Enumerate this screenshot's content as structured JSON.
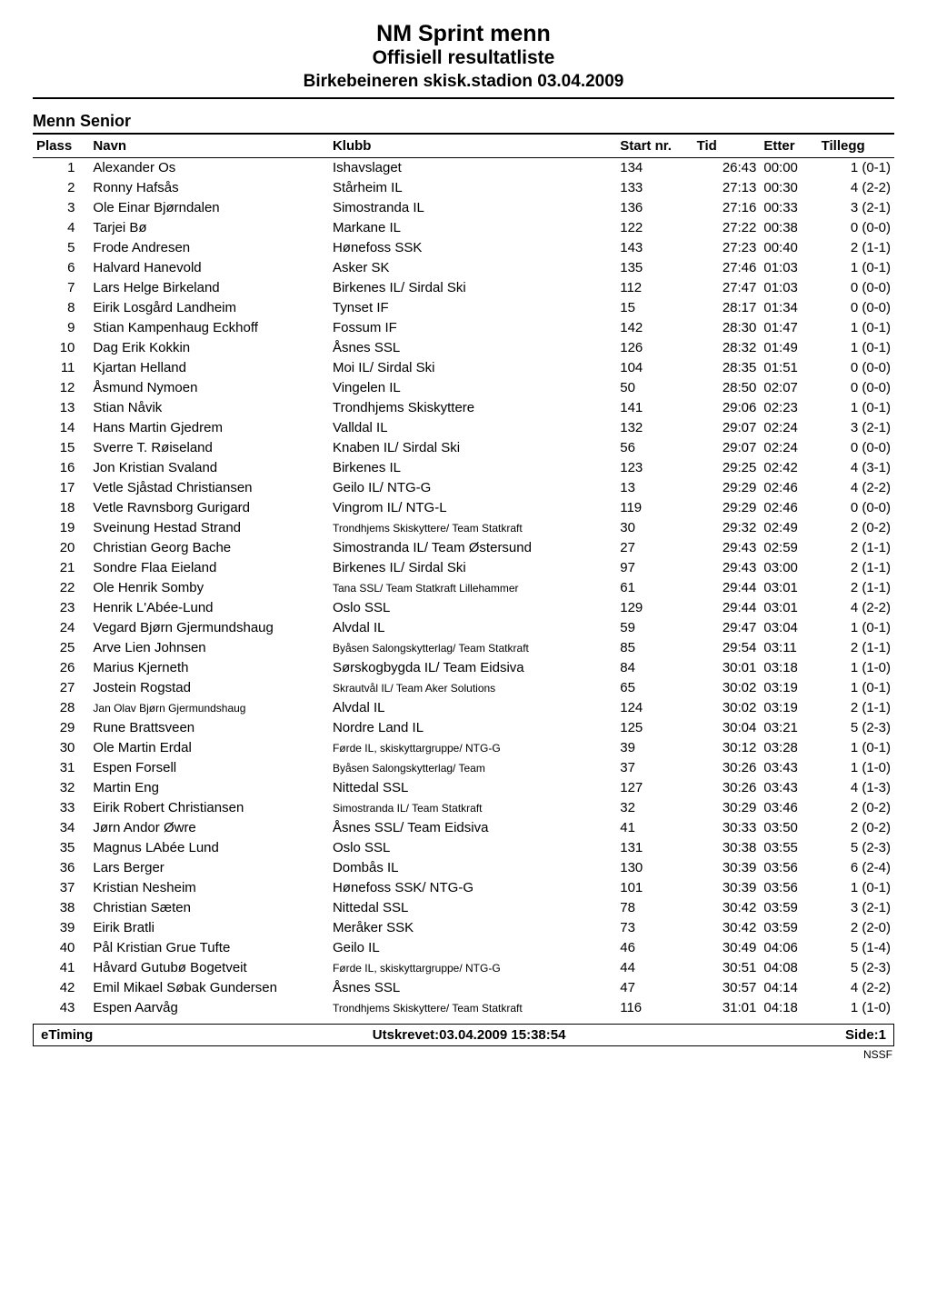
{
  "header": {
    "title_main": "NM Sprint menn",
    "title_sub": "Offisiell resultatliste",
    "event_line": "Birkebeineren skisk.stadion 03.04.2009"
  },
  "category_label": "Menn Senior",
  "columns": {
    "plass": "Plass",
    "navn": "Navn",
    "klubb": "Klubb",
    "startnr": "Start nr.",
    "tid": "Tid",
    "etter": "Etter",
    "tillegg": "Tillegg"
  },
  "rows": [
    {
      "plass": "1",
      "navn": "Alexander Os",
      "klubb": "Ishavslaget",
      "klubb_small": false,
      "start": "134",
      "tid": "26:43",
      "etter": "00:00",
      "till": "1 (0-1)"
    },
    {
      "plass": "2",
      "navn": "Ronny Hafsås",
      "klubb": "Stårheim IL",
      "klubb_small": false,
      "start": "133",
      "tid": "27:13",
      "etter": "00:30",
      "till": "4 (2-2)"
    },
    {
      "plass": "3",
      "navn": "Ole Einar Bjørndalen",
      "klubb": "Simostranda IL",
      "klubb_small": false,
      "start": "136",
      "tid": "27:16",
      "etter": "00:33",
      "till": "3 (2-1)"
    },
    {
      "plass": "4",
      "navn": "Tarjei Bø",
      "klubb": "Markane IL",
      "klubb_small": false,
      "start": "122",
      "tid": "27:22",
      "etter": "00:38",
      "till": "0 (0-0)"
    },
    {
      "plass": "5",
      "navn": "Frode Andresen",
      "klubb": "Hønefoss SSK",
      "klubb_small": false,
      "start": "143",
      "tid": "27:23",
      "etter": "00:40",
      "till": "2 (1-1)"
    },
    {
      "plass": "6",
      "navn": "Halvard Hanevold",
      "klubb": "Asker SK",
      "klubb_small": false,
      "start": "135",
      "tid": "27:46",
      "etter": "01:03",
      "till": "1 (0-1)"
    },
    {
      "plass": "7",
      "navn": "Lars Helge Birkeland",
      "klubb": "Birkenes IL/ Sirdal Ski",
      "klubb_small": false,
      "start": "112",
      "tid": "27:47",
      "etter": "01:03",
      "till": "0 (0-0)"
    },
    {
      "plass": "8",
      "navn": "Eirik Losgård Landheim",
      "klubb": "Tynset IF",
      "klubb_small": false,
      "start": "15",
      "tid": "28:17",
      "etter": "01:34",
      "till": "0 (0-0)"
    },
    {
      "plass": "9",
      "navn": "Stian Kampenhaug Eckhoff",
      "klubb": "Fossum IF",
      "klubb_small": false,
      "start": "142",
      "tid": "28:30",
      "etter": "01:47",
      "till": "1 (0-1)"
    },
    {
      "plass": "10",
      "navn": "Dag Erik Kokkin",
      "klubb": "Åsnes SSL",
      "klubb_small": false,
      "start": "126",
      "tid": "28:32",
      "etter": "01:49",
      "till": "1 (0-1)"
    },
    {
      "plass": "11",
      "navn": "Kjartan Helland",
      "klubb": "Moi IL/ Sirdal Ski",
      "klubb_small": false,
      "start": "104",
      "tid": "28:35",
      "etter": "01:51",
      "till": "0 (0-0)"
    },
    {
      "plass": "12",
      "navn": "Åsmund Nymoen",
      "klubb": "Vingelen IL",
      "klubb_small": false,
      "start": "50",
      "tid": "28:50",
      "etter": "02:07",
      "till": "0 (0-0)"
    },
    {
      "plass": "13",
      "navn": "Stian Nåvik",
      "klubb": "Trondhjems Skiskyttere",
      "klubb_small": false,
      "start": "141",
      "tid": "29:06",
      "etter": "02:23",
      "till": "1 (0-1)"
    },
    {
      "plass": "14",
      "navn": "Hans Martin Gjedrem",
      "klubb": "Valldal IL",
      "klubb_small": false,
      "start": "132",
      "tid": "29:07",
      "etter": "02:24",
      "till": "3 (2-1)"
    },
    {
      "plass": "15",
      "navn": "Sverre T. Røiseland",
      "klubb": "Knaben IL/ Sirdal Ski",
      "klubb_small": false,
      "start": "56",
      "tid": "29:07",
      "etter": "02:24",
      "till": "0 (0-0)"
    },
    {
      "plass": "16",
      "navn": "Jon Kristian Svaland",
      "klubb": "Birkenes IL",
      "klubb_small": false,
      "start": "123",
      "tid": "29:25",
      "etter": "02:42",
      "till": "4 (3-1)"
    },
    {
      "plass": "17",
      "navn": "Vetle Sjåstad Christiansen",
      "klubb": "Geilo IL/ NTG-G",
      "klubb_small": false,
      "start": "13",
      "tid": "29:29",
      "etter": "02:46",
      "till": "4 (2-2)"
    },
    {
      "plass": "18",
      "navn": "Vetle Ravnsborg Gurigard",
      "klubb": "Vingrom IL/ NTG-L",
      "klubb_small": false,
      "start": "119",
      "tid": "29:29",
      "etter": "02:46",
      "till": "0 (0-0)"
    },
    {
      "plass": "19",
      "navn": "Sveinung Hestad Strand",
      "klubb": "Trondhjems Skiskyttere/ Team Statkraft",
      "klubb_small": true,
      "start": "30",
      "tid": "29:32",
      "etter": "02:49",
      "till": "2 (0-2)"
    },
    {
      "plass": "20",
      "navn": "Christian Georg Bache",
      "klubb": "Simostranda IL/ Team Østersund",
      "klubb_small": false,
      "start": "27",
      "tid": "29:43",
      "etter": "02:59",
      "till": "2 (1-1)"
    },
    {
      "plass": "21",
      "navn": "Sondre Flaa Eieland",
      "klubb": "Birkenes IL/ Sirdal Ski",
      "klubb_small": false,
      "start": "97",
      "tid": "29:43",
      "etter": "03:00",
      "till": "2 (1-1)"
    },
    {
      "plass": "22",
      "navn": "Ole Henrik Somby",
      "klubb": "Tana SSL/ Team Statkraft Lillehammer",
      "klubb_small": true,
      "start": "61",
      "tid": "29:44",
      "etter": "03:01",
      "till": "2 (1-1)"
    },
    {
      "plass": "23",
      "navn": "Henrik L'Abée-Lund",
      "klubb": "Oslo SSL",
      "klubb_small": false,
      "start": "129",
      "tid": "29:44",
      "etter": "03:01",
      "till": "4 (2-2)"
    },
    {
      "plass": "24",
      "navn": "Vegard Bjørn Gjermundshaug",
      "klubb": "Alvdal IL",
      "klubb_small": false,
      "start": "59",
      "tid": "29:47",
      "etter": "03:04",
      "till": "1 (0-1)"
    },
    {
      "plass": "25",
      "navn": "Arve Lien Johnsen",
      "klubb": "Byåsen Salongskytterlag/ Team Statkraft",
      "klubb_small": true,
      "start": "85",
      "tid": "29:54",
      "etter": "03:11",
      "till": "2 (1-1)"
    },
    {
      "plass": "26",
      "navn": "Marius Kjerneth",
      "klubb": "Sørskogbygda IL/ Team Eidsiva",
      "klubb_small": false,
      "start": "84",
      "tid": "30:01",
      "etter": "03:18",
      "till": "1 (1-0)"
    },
    {
      "plass": "27",
      "navn": "Jostein Rogstad",
      "klubb": "Skrautvål IL/ Team Aker Solutions",
      "klubb_small": true,
      "start": "65",
      "tid": "30:02",
      "etter": "03:19",
      "till": "1 (0-1)"
    },
    {
      "plass": "28",
      "navn": "Jan Olav Bjørn Gjermundshaug",
      "navn_small": true,
      "klubb": "Alvdal IL",
      "klubb_small": false,
      "start": "124",
      "tid": "30:02",
      "etter": "03:19",
      "till": "2 (1-1)"
    },
    {
      "plass": "29",
      "navn": "Rune Brattsveen",
      "klubb": "Nordre Land IL",
      "klubb_small": false,
      "start": "125",
      "tid": "30:04",
      "etter": "03:21",
      "till": "5 (2-3)"
    },
    {
      "plass": "30",
      "navn": "Ole Martin Erdal",
      "klubb": "Førde IL, skiskyttargruppe/ NTG-G",
      "klubb_small": true,
      "start": "39",
      "tid": "30:12",
      "etter": "03:28",
      "till": "1 (0-1)"
    },
    {
      "plass": "31",
      "navn": "Espen Forsell",
      "klubb": "Byåsen Salongskytterlag/ Team",
      "klubb_small": true,
      "start": "37",
      "tid": "30:26",
      "etter": "03:43",
      "till": "1 (1-0)"
    },
    {
      "plass": "32",
      "navn": "Martin Eng",
      "klubb": "Nittedal SSL",
      "klubb_small": false,
      "start": "127",
      "tid": "30:26",
      "etter": "03:43",
      "till": "4 (1-3)"
    },
    {
      "plass": "33",
      "navn": "Eirik Robert Christiansen",
      "klubb": "Simostranda IL/ Team Statkraft",
      "klubb_small": true,
      "start": "32",
      "tid": "30:29",
      "etter": "03:46",
      "till": "2 (0-2)"
    },
    {
      "plass": "34",
      "navn": "Jørn Andor Øwre",
      "klubb": "Åsnes SSL/ Team Eidsiva",
      "klubb_small": false,
      "start": "41",
      "tid": "30:33",
      "etter": "03:50",
      "till": "2 (0-2)"
    },
    {
      "plass": "35",
      "navn": "Magnus LAbée Lund",
      "klubb": "Oslo SSL",
      "klubb_small": false,
      "start": "131",
      "tid": "30:38",
      "etter": "03:55",
      "till": "5 (2-3)"
    },
    {
      "plass": "36",
      "navn": "Lars Berger",
      "klubb": "Dombås IL",
      "klubb_small": false,
      "start": "130",
      "tid": "30:39",
      "etter": "03:56",
      "till": "6 (2-4)"
    },
    {
      "plass": "37",
      "navn": "Kristian Nesheim",
      "klubb": "Hønefoss SSK/ NTG-G",
      "klubb_small": false,
      "start": "101",
      "tid": "30:39",
      "etter": "03:56",
      "till": "1 (0-1)"
    },
    {
      "plass": "38",
      "navn": "Christian Sæten",
      "klubb": "Nittedal SSL",
      "klubb_small": false,
      "start": "78",
      "tid": "30:42",
      "etter": "03:59",
      "till": "3 (2-1)"
    },
    {
      "plass": "39",
      "navn": "Eirik Bratli",
      "klubb": "Meråker SSK",
      "klubb_small": false,
      "start": "73",
      "tid": "30:42",
      "etter": "03:59",
      "till": "2 (2-0)"
    },
    {
      "plass": "40",
      "navn": "Pål Kristian Grue Tufte",
      "klubb": "Geilo IL",
      "klubb_small": false,
      "start": "46",
      "tid": "30:49",
      "etter": "04:06",
      "till": "5 (1-4)"
    },
    {
      "plass": "41",
      "navn": "Håvard Gutubø Bogetveit",
      "klubb": "Førde IL, skiskyttargruppe/ NTG-G",
      "klubb_small": true,
      "start": "44",
      "tid": "30:51",
      "etter": "04:08",
      "till": "5 (2-3)"
    },
    {
      "plass": "42",
      "navn": "Emil Mikael Søbak Gundersen",
      "klubb": "Åsnes SSL",
      "klubb_small": false,
      "start": "47",
      "tid": "30:57",
      "etter": "04:14",
      "till": "4 (2-2)"
    },
    {
      "plass": "43",
      "navn": "Espen Aarvåg",
      "klubb": "Trondhjems Skiskyttere/ Team Statkraft",
      "klubb_small": true,
      "start": "116",
      "tid": "31:01",
      "etter": "04:18",
      "till": "1 (1-0)"
    }
  ],
  "footer": {
    "left": "eTiming",
    "center": "Utskrevet:03.04.2009 15:38:54",
    "right": "Side:1",
    "nssf": "NSSF"
  }
}
